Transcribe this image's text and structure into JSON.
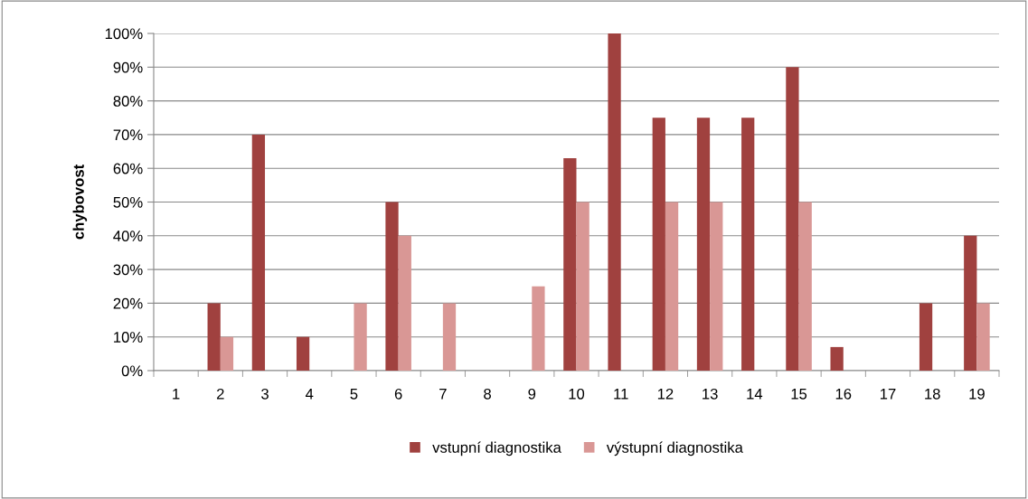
{
  "chart_data": {
    "type": "bar",
    "ylabel": "chybovost",
    "categories": [
      "1",
      "2",
      "3",
      "4",
      "5",
      "6",
      "7",
      "8",
      "9",
      "10",
      "11",
      "12",
      "13",
      "14",
      "15",
      "16",
      "17",
      "18",
      "19"
    ],
    "series": [
      {
        "name": "vstupní diagnostika",
        "color": "#a0413f",
        "values": [
          0,
          20,
          70,
          10,
          0,
          50,
          0,
          0,
          0,
          63,
          100,
          75,
          75,
          75,
          90,
          7,
          0,
          20,
          40
        ]
      },
      {
        "name": "výstupní diagnostika",
        "color": "#d99795",
        "values": [
          0,
          10,
          0,
          0,
          20,
          40,
          20,
          0,
          25,
          50,
          0,
          50,
          50,
          0,
          50,
          0,
          0,
          0,
          20
        ]
      }
    ],
    "ylim": [
      0,
      100
    ],
    "yticks": [
      {
        "value": 0,
        "label": "0%"
      },
      {
        "value": 10,
        "label": "10%"
      },
      {
        "value": 20,
        "label": "20%"
      },
      {
        "value": 30,
        "label": "30%"
      },
      {
        "value": 40,
        "label": "40%"
      },
      {
        "value": 50,
        "label": "50%"
      },
      {
        "value": 60,
        "label": "60%"
      },
      {
        "value": 70,
        "label": "70%"
      },
      {
        "value": 80,
        "label": "80%"
      },
      {
        "value": 90,
        "label": "90%"
      },
      {
        "value": 100,
        "label": "100%"
      }
    ],
    "grid": "y",
    "legend": "bottom"
  }
}
